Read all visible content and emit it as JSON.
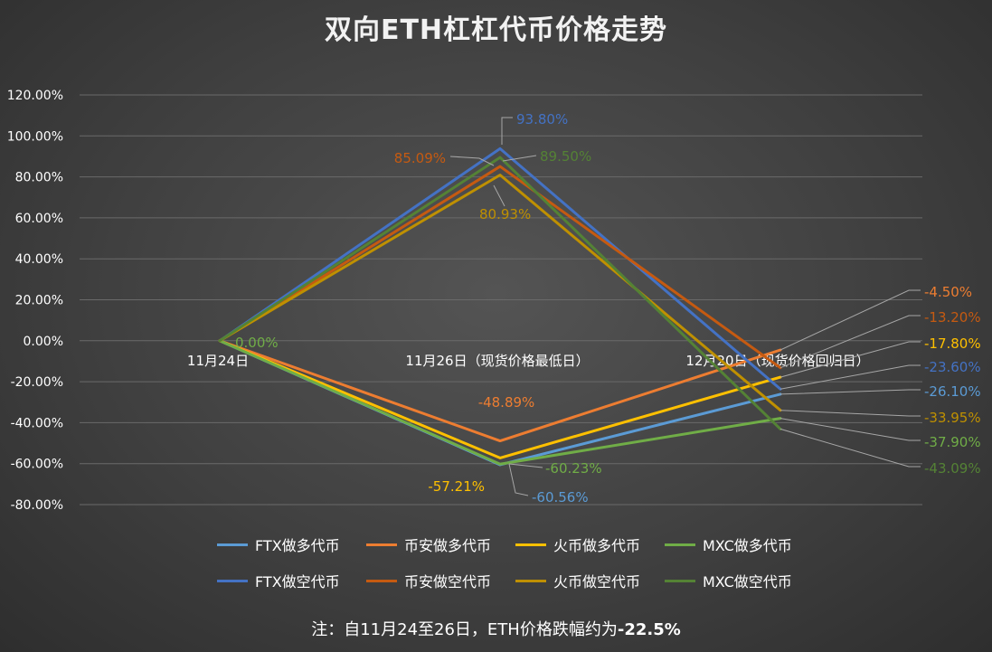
{
  "chart_data": {
    "type": "line",
    "title": "双向ETH杠杠代币价格走势",
    "xlabel": "",
    "ylabel": "",
    "categories": [
      "11月24日",
      "11月26日（现货价格最低日）",
      "12月20日（现货价格回归日）"
    ],
    "ylim": [
      -80,
      120
    ],
    "yticks": [
      "120.00%",
      "100.00%",
      "80.00%",
      "60.00%",
      "40.00%",
      "20.00%",
      "0.00%",
      "-20.00%",
      "-40.00%",
      "-60.00%",
      "-80.00%"
    ],
    "grid": true,
    "legend_position": "bottom",
    "series": [
      {
        "name": "FTX做多代币",
        "color": "#5b9bd5",
        "values": [
          0,
          -60.56,
          -26.1
        ],
        "labels": [
          "",
          "-60.56%",
          "-26.10%"
        ]
      },
      {
        "name": "币安做多代币",
        "color": "#ed7d31",
        "values": [
          0,
          -48.89,
          -4.5
        ],
        "labels": [
          "",
          "-48.89%",
          "-4.50%"
        ]
      },
      {
        "name": "火币做多代币",
        "color": "#ffc000",
        "values": [
          0,
          -57.21,
          -17.8
        ],
        "labels": [
          "",
          "-57.21%",
          "-17.80%"
        ]
      },
      {
        "name": "MXC做多代币",
        "color": "#70ad47",
        "values": [
          0,
          -60.23,
          -37.9
        ],
        "labels": [
          "0.00%",
          "-60.23%",
          "-37.90%"
        ]
      },
      {
        "name": "FTX做空代币",
        "color": "#4472c4",
        "values": [
          0,
          93.8,
          -23.6
        ],
        "labels": [
          "",
          "93.80%",
          "-23.60%"
        ]
      },
      {
        "name": "币安做空代币",
        "color": "#c55a11",
        "values": [
          0,
          85.09,
          -13.2
        ],
        "labels": [
          "",
          "85.09%",
          "-13.20%"
        ]
      },
      {
        "name": "火币做空代币",
        "color": "#bf9000",
        "values": [
          0,
          80.93,
          -33.95
        ],
        "labels": [
          "",
          "80.93%",
          "-33.95%"
        ]
      },
      {
        "name": "MXC做空代币",
        "color": "#548235",
        "values": [
          0,
          89.5,
          -43.09
        ],
        "labels": [
          "",
          "89.50%",
          "-43.09%"
        ]
      }
    ]
  },
  "note": {
    "prefix": "注：自11月24至26日，ETH价格跌幅约为",
    "value": "-22.5%"
  }
}
